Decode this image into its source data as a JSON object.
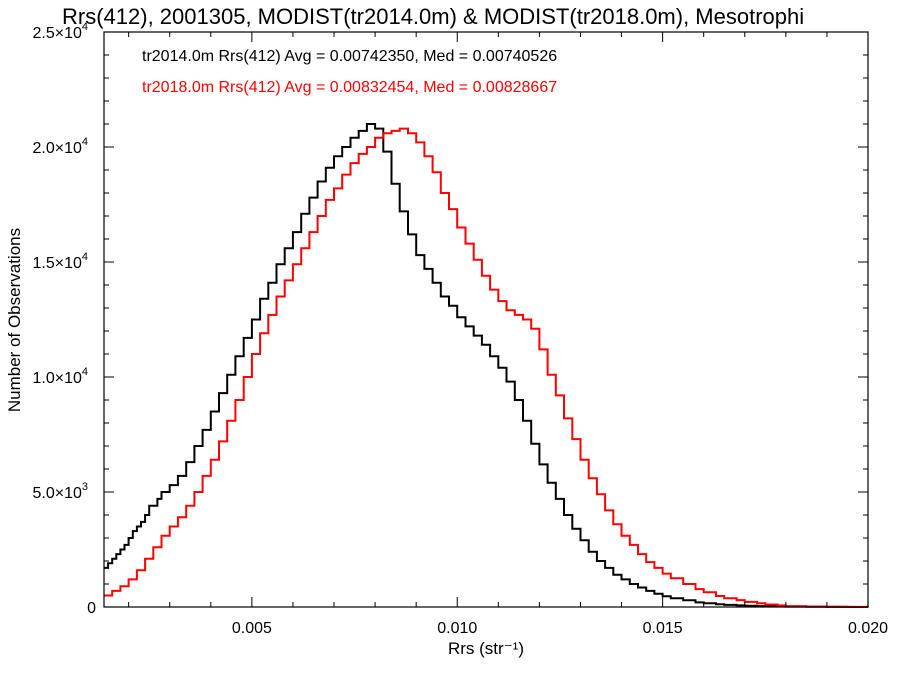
{
  "chart_data": {
    "type": "line",
    "title": "Rrs(412), 2001305, MODIST(tr2014.0m) & MODIST(tr2018.0m), Mesotrophi",
    "xlabel": "Rrs (str⁻¹)",
    "ylabel": "Number of Observations",
    "xlim": [
      0.0014,
      0.02
    ],
    "ylim": [
      0,
      25000
    ],
    "grid": false,
    "legend_position": "top-left",
    "x_ticks": [
      0.005,
      0.01,
      0.015,
      0.02
    ],
    "x_tick_labels": [
      "0.005",
      "0.010",
      "0.015",
      "0.020"
    ],
    "y_ticks": [
      0,
      5000,
      10000,
      15000,
      20000,
      25000
    ],
    "y_tick_labels": [
      {
        "base": "0",
        "exp": ""
      },
      {
        "base": "5.0×10",
        "exp": "3"
      },
      {
        "base": "1.0×10",
        "exp": "4"
      },
      {
        "base": "1.5×10",
        "exp": "4"
      },
      {
        "base": "2.0×10",
        "exp": "4"
      },
      {
        "base": "2.5×10",
        "exp": "4"
      }
    ],
    "annotations": [
      "tr2014.0m Rrs(412) Avg = 0.00742350, Med = 0.00740526",
      "tr2018.0m Rrs(412) Avg = 0.00832454, Med = 0.00828667"
    ],
    "series": [
      {
        "color": "#000000",
        "step": true,
        "x": [
          0.0014,
          0.0015,
          0.0016,
          0.0017,
          0.0018,
          0.0019,
          0.002,
          0.0021,
          0.0022,
          0.0023,
          0.0024,
          0.0025,
          0.0027,
          0.0028,
          0.003,
          0.0032,
          0.0034,
          0.0036,
          0.0038,
          0.004,
          0.0042,
          0.0044,
          0.0046,
          0.0048,
          0.005,
          0.0052,
          0.0054,
          0.0056,
          0.0058,
          0.006,
          0.0062,
          0.0064,
          0.0066,
          0.0068,
          0.007,
          0.0072,
          0.0074,
          0.0076,
          0.0078,
          0.008,
          0.0082,
          0.0084,
          0.0086,
          0.0088,
          0.009,
          0.0092,
          0.0094,
          0.0096,
          0.0098,
          0.01,
          0.0102,
          0.0104,
          0.0106,
          0.0108,
          0.011,
          0.0112,
          0.0114,
          0.0116,
          0.0118,
          0.012,
          0.0122,
          0.0124,
          0.0126,
          0.0128,
          0.013,
          0.0132,
          0.0134,
          0.0136,
          0.0138,
          0.014,
          0.0142,
          0.0144,
          0.0146,
          0.0148,
          0.015,
          0.0152,
          0.0155,
          0.0158,
          0.016,
          0.0163,
          0.0165,
          0.0168,
          0.017,
          0.0173,
          0.0175,
          0.018,
          0.0185,
          0.019,
          0.0195,
          0.02
        ],
        "y": [
          1700,
          1900,
          2100,
          2300,
          2500,
          2700,
          3000,
          3300,
          3500,
          3700,
          4000,
          4400,
          4700,
          5000,
          5300,
          5700,
          6300,
          7000,
          7700,
          8500,
          9300,
          10100,
          10900,
          11700,
          12500,
          13400,
          14100,
          14900,
          15600,
          16300,
          17100,
          17800,
          18500,
          19100,
          19600,
          20000,
          20400,
          20700,
          21000,
          20800,
          19800,
          18400,
          17200,
          16200,
          15300,
          14700,
          14100,
          13500,
          13100,
          12600,
          12200,
          11800,
          11400,
          10900,
          10400,
          9800,
          9000,
          8100,
          7100,
          6200,
          5400,
          4700,
          4000,
          3400,
          2900,
          2400,
          2000,
          1700,
          1400,
          1200,
          1000,
          850,
          700,
          580,
          470,
          380,
          290,
          200,
          160,
          120,
          90,
          70,
          55,
          40,
          30,
          18,
          10,
          5,
          2,
          0
        ]
      },
      {
        "color": "#ff0000",
        "step": true,
        "x": [
          0.0014,
          0.0016,
          0.0018,
          0.002,
          0.0022,
          0.0024,
          0.0026,
          0.0028,
          0.003,
          0.0032,
          0.0034,
          0.0036,
          0.0038,
          0.004,
          0.0042,
          0.0044,
          0.0046,
          0.0048,
          0.005,
          0.0052,
          0.0054,
          0.0056,
          0.0058,
          0.006,
          0.0062,
          0.0064,
          0.0066,
          0.0068,
          0.007,
          0.0072,
          0.0074,
          0.0076,
          0.0078,
          0.008,
          0.0082,
          0.0084,
          0.0086,
          0.0088,
          0.009,
          0.0092,
          0.0094,
          0.0096,
          0.0098,
          0.01,
          0.0102,
          0.0104,
          0.0106,
          0.0108,
          0.011,
          0.0112,
          0.0114,
          0.0116,
          0.0118,
          0.012,
          0.0122,
          0.0124,
          0.0126,
          0.0128,
          0.013,
          0.0132,
          0.0134,
          0.0136,
          0.0138,
          0.014,
          0.0142,
          0.0144,
          0.0146,
          0.0148,
          0.015,
          0.0152,
          0.0155,
          0.0158,
          0.016,
          0.0163,
          0.0165,
          0.0168,
          0.017,
          0.0173,
          0.0175,
          0.0178,
          0.018,
          0.0185,
          0.019,
          0.0195,
          0.02
        ],
        "y": [
          500,
          700,
          900,
          1200,
          1600,
          2100,
          2600,
          3100,
          3500,
          3900,
          4400,
          5000,
          5700,
          6400,
          7200,
          8100,
          9000,
          10000,
          11000,
          11900,
          12700,
          13500,
          14200,
          14900,
          15600,
          16300,
          17000,
          17700,
          18200,
          18800,
          19300,
          19700,
          20000,
          20400,
          20600,
          20700,
          20800,
          20600,
          20200,
          19600,
          18900,
          18000,
          17300,
          16500,
          15800,
          15100,
          14400,
          13800,
          13300,
          12900,
          12700,
          12500,
          12100,
          11200,
          10100,
          9200,
          8200,
          7300,
          6400,
          5600,
          4900,
          4200,
          3600,
          3100,
          2700,
          2300,
          1950,
          1700,
          1450,
          1250,
          1000,
          780,
          640,
          480,
          380,
          300,
          220,
          160,
          110,
          70,
          40,
          20,
          10,
          5,
          0
        ]
      }
    ]
  }
}
